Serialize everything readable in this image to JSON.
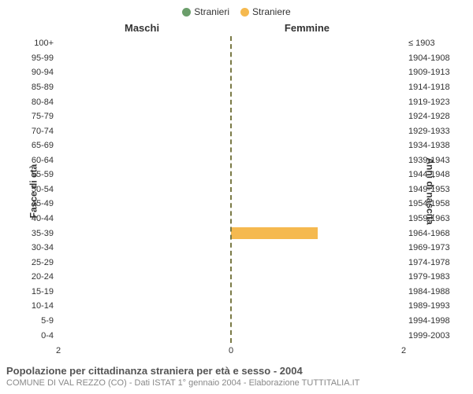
{
  "legend": {
    "male": {
      "label": "Stranieri",
      "color": "#6b9e6b"
    },
    "female": {
      "label": "Straniere",
      "color": "#f5b94f"
    }
  },
  "headers": {
    "left": "Maschi",
    "right": "Femmine",
    "yaxis_left": "Fasce di età",
    "yaxis_right": "Anni di nascita"
  },
  "chart": {
    "type": "population-pyramid",
    "background_color": "#ffffff",
    "centerline_color": "#7a7a46",
    "tick_fontsize": 11,
    "header_fontsize": 13,
    "x_max": 2,
    "x_ticks_left": [
      2,
      0
    ],
    "x_ticks_right": [
      0,
      2
    ],
    "age_bands": [
      {
        "age": "100+",
        "birth": "≤ 1903",
        "male": 0,
        "female": 0
      },
      {
        "age": "95-99",
        "birth": "1904-1908",
        "male": 0,
        "female": 0
      },
      {
        "age": "90-94",
        "birth": "1909-1913",
        "male": 0,
        "female": 0
      },
      {
        "age": "85-89",
        "birth": "1914-1918",
        "male": 0,
        "female": 0
      },
      {
        "age": "80-84",
        "birth": "1919-1923",
        "male": 0,
        "female": 0
      },
      {
        "age": "75-79",
        "birth": "1924-1928",
        "male": 0,
        "female": 0
      },
      {
        "age": "70-74",
        "birth": "1929-1933",
        "male": 0,
        "female": 0
      },
      {
        "age": "65-69",
        "birth": "1934-1938",
        "male": 0,
        "female": 0
      },
      {
        "age": "60-64",
        "birth": "1939-1943",
        "male": 0,
        "female": 0
      },
      {
        "age": "55-59",
        "birth": "1944-1948",
        "male": 0,
        "female": 0
      },
      {
        "age": "50-54",
        "birth": "1949-1953",
        "male": 0,
        "female": 0
      },
      {
        "age": "45-49",
        "birth": "1954-1958",
        "male": 0,
        "female": 0
      },
      {
        "age": "40-44",
        "birth": "1959-1963",
        "male": 0,
        "female": 0
      },
      {
        "age": "35-39",
        "birth": "1964-1968",
        "male": 0,
        "female": 1
      },
      {
        "age": "30-34",
        "birth": "1969-1973",
        "male": 0,
        "female": 0
      },
      {
        "age": "25-29",
        "birth": "1974-1978",
        "male": 0,
        "female": 0
      },
      {
        "age": "20-24",
        "birth": "1979-1983",
        "male": 0,
        "female": 0
      },
      {
        "age": "15-19",
        "birth": "1984-1988",
        "male": 0,
        "female": 0
      },
      {
        "age": "10-14",
        "birth": "1989-1993",
        "male": 0,
        "female": 0
      },
      {
        "age": "5-9",
        "birth": "1994-1998",
        "male": 0,
        "female": 0
      },
      {
        "age": "0-4",
        "birth": "1999-2003",
        "male": 0,
        "female": 0
      }
    ]
  },
  "caption": {
    "title": "Popolazione per cittadinanza straniera per età e sesso - 2004",
    "subtitle": "COMUNE DI VAL REZZO (CO) - Dati ISTAT 1° gennaio 2004 - Elaborazione TUTTITALIA.IT"
  }
}
